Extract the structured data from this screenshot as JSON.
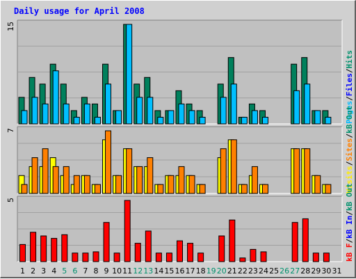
{
  "chart_data": {
    "type": "bar",
    "title": "Daily usage for April 2008",
    "days": [
      "1",
      "2",
      "3",
      "4",
      "5",
      "6",
      "7",
      "8",
      "9",
      "10",
      "11",
      "12",
      "13",
      "14",
      "15",
      "16",
      "17",
      "18",
      "19",
      "20",
      "21",
      "22",
      "23",
      "24",
      "25",
      "26",
      "27",
      "28",
      "29",
      "30",
      "31"
    ],
    "weekend_days": [
      "5",
      "6",
      "12",
      "13",
      "19",
      "20",
      "26",
      "27"
    ],
    "panels": [
      {
        "name": "hits-files-pages",
        "ymax": 15,
        "ymax_label": "15",
        "side_label": [
          {
            "text": "Pages",
            "color": "#00bbff"
          },
          {
            "text": "/",
            "color": "#000000"
          },
          {
            "text": "Files",
            "color": "#0000ff"
          },
          {
            "text": "/",
            "color": "#000000"
          },
          {
            "text": "Hits",
            "color": "#00916d"
          }
        ],
        "series": [
          {
            "name": "Hits",
            "color": "#00805c",
            "values": [
              4,
              7,
              6,
              9,
              6,
              2,
              4,
              3,
              9,
              2,
              15,
              6,
              7,
              2,
              2,
              5,
              3,
              2,
              0,
              6,
              10,
              1,
              3,
              2,
              0,
              0,
              9,
              10,
              2,
              2,
              0
            ]
          },
          {
            "name": "Files",
            "color": "#00bfff",
            "values": [
              2,
              4,
              3,
              8,
              3,
              1,
              3,
              1,
              6,
              2,
              15,
              4,
              4,
              1,
              2,
              3,
              2,
              1,
              0,
              4,
              6,
              1,
              2,
              1,
              0,
              0,
              5,
              6,
              2,
              1,
              0
            ]
          }
        ]
      },
      {
        "name": "sites-visits",
        "ymax": 7,
        "ymax_label": "7",
        "side_label": [
          {
            "text": "Visits",
            "color": "#ffee00"
          },
          {
            "text": "/",
            "color": "#000000"
          },
          {
            "text": "Sites",
            "color": "#ff8000"
          },
          {
            "text": "/",
            "color": "#000000"
          },
          {
            "text": "kB Out",
            "color": "#00916d"
          }
        ],
        "series": [
          {
            "name": "Visits",
            "color": "#ffff00",
            "values": [
              2,
              3,
              3,
              4,
              2,
              1,
              2,
              1,
              6,
              2,
              5,
              3,
              3,
              1,
              2,
              2,
              2,
              1,
              0,
              4,
              6,
              1,
              2,
              1,
              0,
              0,
              5,
              5,
              2,
              1,
              0
            ]
          },
          {
            "name": "Sites",
            "color": "#ff8000",
            "values": [
              1,
              4,
              5,
              3,
              3,
              2,
              2,
              1,
              7,
              2,
              5,
              3,
              4,
              1,
              2,
              3,
              2,
              1,
              0,
              5,
              6,
              1,
              3,
              1,
              0,
              0,
              5,
              5,
              2,
              1,
              0
            ]
          }
        ]
      },
      {
        "name": "kbytes",
        "ymax": 5,
        "ymax_label": "5",
        "side_label": [
          {
            "text": "kB F",
            "color": "#ff0000"
          },
          {
            "text": "/",
            "color": "#000000"
          },
          {
            "text": "kB In",
            "color": "#0000ff"
          },
          {
            "text": "/",
            "color": "#000000"
          },
          {
            "text": "kB Out",
            "color": "#00916d"
          }
        ],
        "series": [
          {
            "name": "kB F",
            "color": "#ff0000",
            "values": [
              1.4,
              2.4,
              2.1,
              1.9,
              2.2,
              0.7,
              0.7,
              0.8,
              3.2,
              0.7,
              5.0,
              1.5,
              2.5,
              0.7,
              0.7,
              1.7,
              1.5,
              0.7,
              0,
              2.1,
              3.4,
              0.3,
              1.0,
              0.8,
              0,
              0,
              3.2,
              3.5,
              0.7,
              0.7,
              0
            ]
          }
        ]
      }
    ],
    "colors": {
      "background": "#d0d0d0",
      "plot_area": "#c0c0c0",
      "grid": "#a0a0a0",
      "title": "#0000ff",
      "weekday": "#000000",
      "weekend": "#00916d"
    }
  }
}
